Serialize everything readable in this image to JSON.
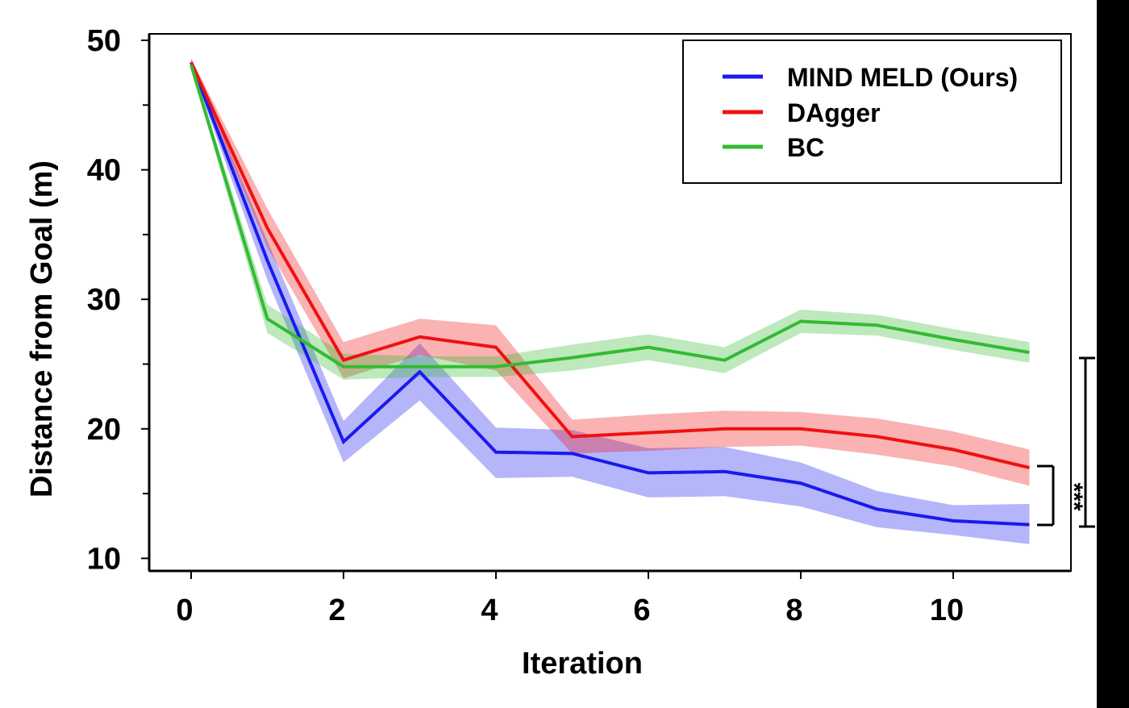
{
  "chart_data": {
    "type": "line",
    "title": "",
    "xlabel": "Iteration",
    "ylabel": "Distance from Goal (m)",
    "xlim": [
      -0.5,
      11.5
    ],
    "ylim": [
      9,
      50
    ],
    "xticks": [
      0,
      2,
      4,
      6,
      8,
      10
    ],
    "xtick_labels": [
      "0",
      "2",
      "4",
      "6",
      "8",
      "10"
    ],
    "yticks": [
      10,
      20,
      30,
      40,
      50
    ],
    "ytick_labels": [
      "10",
      "20",
      "30",
      "40",
      "50"
    ],
    "y_minor_ticks": [
      15,
      25,
      35,
      45
    ],
    "grid": false,
    "legend_position": "top-right",
    "x": [
      0,
      1,
      2,
      3,
      4,
      5,
      6,
      7,
      8,
      9,
      10,
      11
    ],
    "series": [
      {
        "name": "MIND MELD (Ours)",
        "color": "#1a1aee",
        "values": [
          48.3,
          33.0,
          19.0,
          24.4,
          18.2,
          18.1,
          16.6,
          16.7,
          15.8,
          13.8,
          12.9,
          12.6
        ],
        "lower": [
          48.0,
          31.5,
          17.4,
          22.2,
          16.2,
          16.3,
          14.7,
          14.8,
          14.0,
          12.4,
          11.8,
          11.1
        ],
        "upper": [
          48.6,
          34.5,
          20.6,
          26.6,
          20.1,
          19.9,
          18.5,
          18.6,
          17.4,
          15.2,
          14.1,
          14.2
        ]
      },
      {
        "name": "DAgger",
        "color": "#ee1111",
        "values": [
          48.3,
          35.5,
          25.3,
          27.1,
          26.3,
          19.4,
          19.7,
          20.0,
          20.0,
          19.4,
          18.4,
          17.0
        ],
        "lower": [
          48.0,
          34.0,
          23.9,
          25.7,
          24.5,
          18.1,
          18.3,
          18.6,
          18.7,
          18.0,
          17.1,
          15.6
        ],
        "upper": [
          48.6,
          37.0,
          26.7,
          28.5,
          28.0,
          20.7,
          21.1,
          21.4,
          21.3,
          20.8,
          19.8,
          18.4
        ]
      },
      {
        "name": "BC",
        "color": "#33bb33",
        "values": [
          48.1,
          28.5,
          24.8,
          24.8,
          24.8,
          25.5,
          26.3,
          25.3,
          28.3,
          28.0,
          26.9,
          25.9
        ],
        "lower": [
          47.8,
          27.4,
          23.8,
          24.0,
          24.0,
          24.5,
          25.3,
          24.3,
          27.4,
          27.2,
          26.1,
          25.1
        ],
        "upper": [
          48.4,
          29.6,
          25.8,
          25.6,
          25.6,
          26.5,
          27.3,
          26.3,
          29.2,
          28.8,
          27.7,
          26.7
        ]
      }
    ],
    "annotations": [
      {
        "text": "***",
        "between": [
          "DAgger",
          "MIND MELD (Ours)"
        ],
        "at_x": 11
      }
    ]
  }
}
